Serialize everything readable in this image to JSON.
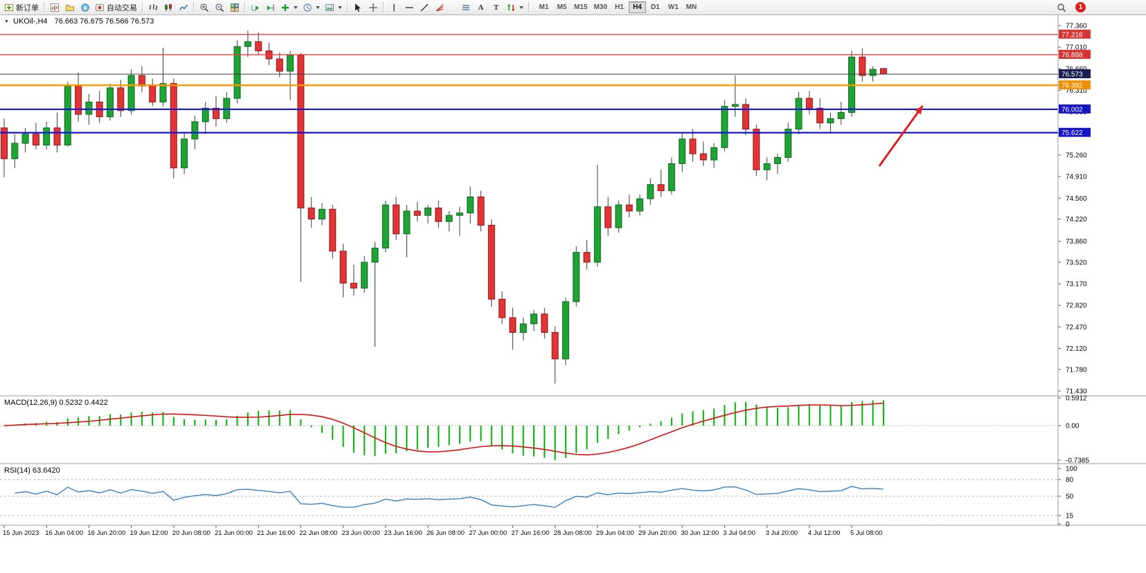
{
  "toolbar": {
    "new_order": "新订单",
    "auto_trading": "自动交易",
    "timeframes": [
      "M1",
      "M5",
      "M15",
      "M30",
      "H1",
      "H4",
      "D1",
      "W1",
      "MN"
    ],
    "active_timeframe": "H4",
    "notification_badge": "1",
    "icons": {
      "text_tool": "A",
      "label_tool": "T"
    }
  },
  "chart_header": {
    "symbol_period": "UKOil-,H4",
    "ohlc": "76.663 76.675 76.566 76.573"
  },
  "indicator_labels": {
    "macd": "MACD(12,26,9) 0.5232 0.4422",
    "rsi": "RSI(14) 63.6420"
  },
  "chart_data": {
    "type": "candlestick",
    "symbol": "UKOil-",
    "period": "H4",
    "ohlc_current": {
      "open": 76.663,
      "high": 76.675,
      "low": 76.566,
      "close": 76.573
    },
    "price_axis": {
      "min": 71.43,
      "max": 77.36,
      "ticks": [
        "77.360",
        "77.010",
        "76.660",
        "76.310",
        "75.960",
        "75.610",
        "75.260",
        "74.910",
        "74.560",
        "74.220",
        "73.860",
        "73.520",
        "73.170",
        "72.820",
        "72.470",
        "72.120",
        "71.780",
        "71.430"
      ]
    },
    "time_labels": [
      "15 Jun 2023",
      "16 Jun 04:00",
      "16 Jun 20:00",
      "19 Jun 12:00",
      "20 Jun 08:00",
      "21 Jun 00:00",
      "21 Jun 16:00",
      "22 Jun 08:00",
      "23 Jun 00:00",
      "23 Jun 16:00",
      "26 Jun 08:00",
      "27 Jun 00:00",
      "27 Jun 16:00",
      "28 Jun 08:00",
      "29 Jun 04:00",
      "29 Jun 20:00",
      "30 Jun 12:00",
      "3 Jul 04:00",
      "3 Jul 20:00",
      "4 Jul 12:00",
      "5 Jul 08:00"
    ],
    "bars_per_label": 4,
    "candles": [
      [
        75.7,
        75.85,
        74.9,
        75.2
      ],
      [
        75.2,
        75.6,
        75.05,
        75.45
      ],
      [
        75.45,
        75.7,
        75.3,
        75.6
      ],
      [
        75.6,
        75.78,
        75.35,
        75.42
      ],
      [
        75.42,
        75.8,
        75.35,
        75.7
      ],
      [
        75.7,
        75.95,
        75.3,
        75.42
      ],
      [
        75.42,
        76.45,
        75.4,
        76.38
      ],
      [
        76.38,
        76.6,
        75.8,
        75.92
      ],
      [
        75.92,
        76.25,
        75.75,
        76.12
      ],
      [
        76.12,
        76.3,
        75.78,
        75.88
      ],
      [
        75.88,
        76.42,
        75.82,
        76.35
      ],
      [
        76.35,
        76.48,
        75.88,
        75.98
      ],
      [
        75.98,
        76.65,
        75.92,
        76.55
      ],
      [
        76.55,
        76.7,
        76.28,
        76.38
      ],
      [
        76.38,
        76.5,
        76.05,
        76.12
      ],
      [
        76.12,
        77.0,
        76.05,
        76.42
      ],
      [
        76.42,
        76.5,
        74.88,
        75.05
      ],
      [
        75.05,
        75.62,
        74.95,
        75.52
      ],
      [
        75.52,
        75.9,
        75.35,
        75.8
      ],
      [
        75.8,
        76.12,
        75.6,
        76.02
      ],
      [
        76.02,
        76.22,
        75.72,
        75.85
      ],
      [
        75.85,
        76.28,
        75.78,
        76.18
      ],
      [
        76.18,
        77.12,
        76.1,
        77.02
      ],
      [
        77.02,
        77.28,
        76.85,
        77.1
      ],
      [
        77.1,
        77.25,
        76.88,
        76.95
      ],
      [
        76.95,
        77.08,
        76.72,
        76.82
      ],
      [
        76.82,
        76.92,
        76.52,
        76.62
      ],
      [
        76.62,
        76.95,
        76.15,
        76.88
      ],
      [
        76.88,
        76.92,
        73.2,
        74.4
      ],
      [
        74.4,
        74.58,
        74.08,
        74.22
      ],
      [
        74.22,
        74.48,
        74.12,
        74.38
      ],
      [
        74.38,
        74.45,
        73.58,
        73.7
      ],
      [
        73.7,
        73.82,
        72.95,
        73.18
      ],
      [
        73.18,
        73.48,
        72.98,
        73.1
      ],
      [
        73.1,
        73.62,
        73.02,
        73.52
      ],
      [
        73.52,
        73.85,
        72.15,
        73.75
      ],
      [
        73.75,
        74.52,
        73.68,
        74.45
      ],
      [
        74.45,
        74.58,
        73.88,
        73.98
      ],
      [
        73.98,
        74.45,
        73.6,
        74.35
      ],
      [
        74.35,
        74.5,
        74.18,
        74.28
      ],
      [
        74.28,
        74.45,
        74.15,
        74.4
      ],
      [
        74.4,
        74.52,
        74.08,
        74.18
      ],
      [
        74.18,
        74.35,
        74.02,
        74.28
      ],
      [
        74.28,
        74.42,
        73.95,
        74.32
      ],
      [
        74.32,
        74.75,
        74.15,
        74.58
      ],
      [
        74.58,
        74.68,
        74.02,
        74.12
      ],
      [
        74.12,
        74.22,
        72.8,
        72.92
      ],
      [
        72.92,
        73.05,
        72.52,
        72.62
      ],
      [
        72.62,
        72.78,
        72.1,
        72.38
      ],
      [
        72.38,
        72.62,
        72.25,
        72.52
      ],
      [
        72.52,
        72.75,
        72.4,
        72.68
      ],
      [
        72.68,
        72.78,
        72.28,
        72.38
      ],
      [
        72.38,
        72.48,
        71.55,
        71.95
      ],
      [
        71.95,
        72.95,
        71.85,
        72.88
      ],
      [
        72.88,
        73.78,
        72.8,
        73.68
      ],
      [
        73.68,
        73.88,
        73.4,
        73.52
      ],
      [
        73.52,
        75.1,
        73.45,
        74.42
      ],
      [
        74.42,
        74.58,
        73.95,
        74.08
      ],
      [
        74.08,
        74.52,
        74.0,
        74.45
      ],
      [
        74.45,
        74.62,
        74.25,
        74.35
      ],
      [
        74.35,
        74.62,
        74.28,
        74.55
      ],
      [
        74.55,
        74.88,
        74.45,
        74.78
      ],
      [
        74.78,
        75.02,
        74.58,
        74.68
      ],
      [
        74.68,
        75.22,
        74.62,
        75.12
      ],
      [
        75.12,
        75.62,
        74.98,
        75.52
      ],
      [
        75.52,
        75.68,
        75.15,
        75.28
      ],
      [
        75.28,
        75.48,
        75.08,
        75.18
      ],
      [
        75.18,
        75.45,
        75.05,
        75.38
      ],
      [
        75.38,
        76.15,
        75.32,
        76.05
      ],
      [
        76.05,
        76.55,
        75.88,
        76.08
      ],
      [
        76.08,
        76.18,
        75.58,
        75.68
      ],
      [
        75.68,
        75.75,
        74.92,
        75.02
      ],
      [
        75.02,
        75.22,
        74.85,
        75.12
      ],
      [
        75.12,
        75.28,
        74.95,
        75.22
      ],
      [
        75.22,
        75.78,
        75.15,
        75.68
      ],
      [
        75.68,
        76.28,
        75.6,
        76.18
      ],
      [
        76.18,
        76.3,
        75.92,
        76.02
      ],
      [
        76.02,
        76.18,
        75.68,
        75.78
      ],
      [
        75.78,
        75.95,
        75.62,
        75.85
      ],
      [
        75.85,
        76.12,
        75.75,
        75.95
      ],
      [
        75.95,
        76.95,
        75.88,
        76.85
      ],
      [
        76.85,
        76.99,
        76.45,
        76.55
      ],
      [
        76.55,
        76.7,
        76.45,
        76.65
      ],
      [
        76.663,
        76.675,
        76.566,
        76.573
      ]
    ],
    "colors": {
      "up": "#1fa335",
      "down": "#e23434",
      "wick": "#3a3a3a",
      "macd_hist": "#00b400",
      "macd_signal": "#e01010",
      "rsi_line": "#3b7fc4"
    },
    "hlines": [
      {
        "price": 77.216,
        "label": "77.216",
        "color": "#f23b3b",
        "width": 1.4,
        "badge": "#d83434"
      },
      {
        "price": 76.888,
        "label": "76.888",
        "color": "#f23b3b",
        "width": 1.4,
        "badge": "#d83434"
      },
      {
        "price": 76.573,
        "label": "76.573",
        "color": "#3c3c3c",
        "width": 1,
        "badge": "#1d1d55"
      },
      {
        "price": 76.392,
        "label": "76.392",
        "color": "#ff9800",
        "width": 2.4,
        "badge": "#f09000"
      },
      {
        "price": 76.002,
        "label": "76.002",
        "color": "#1414e6",
        "width": 2.2,
        "badge": "#1414c8"
      },
      {
        "price": 75.622,
        "label": "75.622",
        "color": "#1414e6",
        "width": 2.2,
        "badge": "#1414c8"
      }
    ],
    "arrow": {
      "from_bar": 82.6,
      "from_price": 75.08,
      "to_bar": 86.7,
      "to_price": 76.06,
      "color": "#e02020"
    },
    "macd": {
      "fast": 12,
      "slow": 26,
      "signal": 9,
      "value": 0.5232,
      "signal_value": 0.4422,
      "scale_ticks": [
        [
          "0.5912",
          0.5912
        ],
        [
          "0.00",
          0
        ],
        [
          "-0.7385",
          -0.7385
        ]
      ],
      "range_max": 0.5912,
      "range_min": -0.7385
    },
    "rsi": {
      "period": 14,
      "value": 63.642,
      "scale_ticks": [
        [
          "100",
          100
        ],
        [
          "80",
          80
        ],
        [
          "50",
          50
        ],
        [
          "15",
          15
        ],
        [
          "0",
          0
        ]
      ],
      "levels": [
        80,
        50,
        15
      ]
    }
  }
}
